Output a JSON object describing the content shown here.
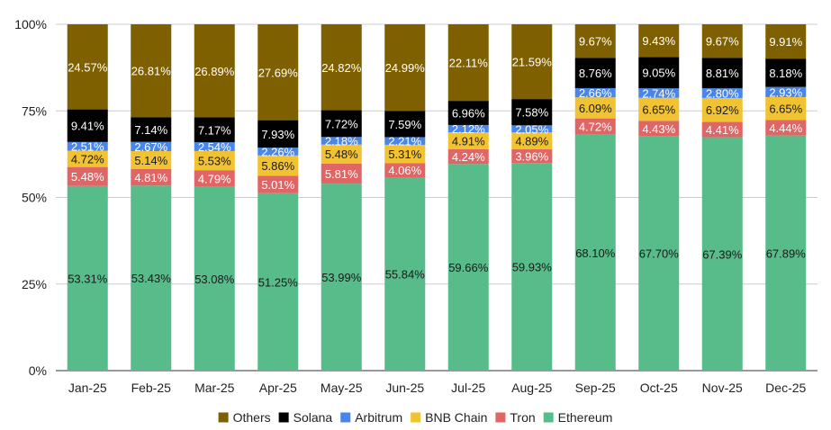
{
  "chart_data": {
    "type": "bar",
    "stacked": true,
    "title": "",
    "xlabel": "",
    "ylabel": "",
    "ylim": [
      0,
      100
    ],
    "y_ticks": [
      "0%",
      "25%",
      "50%",
      "75%",
      "100%"
    ],
    "categories": [
      "Jan-25",
      "Feb-25",
      "Mar-25",
      "Apr-25",
      "May-25",
      "Jun-25",
      "Jul-25",
      "Aug-25",
      "Sep-25",
      "Oct-25",
      "Nov-25",
      "Dec-25"
    ],
    "legend_position": "bottom",
    "series": [
      {
        "name": "Ethereum",
        "color": "#57bb8a",
        "label_color": "#1a1a1a",
        "values": [
          53.31,
          53.43,
          53.08,
          51.25,
          53.99,
          55.84,
          59.66,
          59.93,
          68.1,
          67.7,
          67.39,
          67.89
        ],
        "labels": [
          "53.31%",
          "53.43%",
          "53.08%",
          "51.25%",
          "53.99%",
          "55.84%",
          "59.66%",
          "59.93%",
          "68.10%",
          "67.70%",
          "67.39%",
          "67.89%"
        ]
      },
      {
        "name": "Tron",
        "color": "#e06666",
        "label_color": "#ffffff",
        "values": [
          5.48,
          4.81,
          4.79,
          5.01,
          5.81,
          4.06,
          4.24,
          3.96,
          4.72,
          4.43,
          4.41,
          4.44
        ],
        "labels": [
          "5.48%",
          "4.81%",
          "4.79%",
          "5.01%",
          "5.81%",
          "4.06%",
          "4.24%",
          "3.96%",
          "4.72%",
          "4.43%",
          "4.41%",
          "4.44%"
        ]
      },
      {
        "name": "BNB Chain",
        "color": "#f1c232",
        "label_color": "#1a1a1a",
        "values": [
          4.72,
          5.14,
          5.53,
          5.86,
          5.48,
          5.31,
          4.91,
          4.89,
          6.09,
          6.65,
          6.92,
          6.65
        ],
        "labels": [
          "4.72%",
          "5.14%",
          "5.53%",
          "5.86%",
          "5.48%",
          "5.31%",
          "4.91%",
          "4.89%",
          "6.09%",
          "6.65%",
          "6.92%",
          "6.65%"
        ]
      },
      {
        "name": "Arbitrum",
        "color": "#4a86e8",
        "label_color": "#ffffff",
        "values": [
          2.51,
          2.67,
          2.54,
          2.26,
          2.18,
          2.21,
          2.12,
          2.05,
          2.66,
          2.74,
          2.8,
          2.93
        ],
        "labels": [
          "2.51%",
          "2.67%",
          "2.54%",
          "2.26%",
          "2.18%",
          "2.21%",
          "2.12%",
          "2.05%",
          "2.66%",
          "2.74%",
          "2.80%",
          "2.93%"
        ]
      },
      {
        "name": "Solana",
        "color": "#000000",
        "label_color": "#ffffff",
        "values": [
          9.41,
          7.14,
          7.17,
          7.93,
          7.72,
          7.59,
          6.96,
          7.58,
          8.76,
          9.05,
          8.81,
          8.18
        ],
        "labels": [
          "9.41%",
          "7.14%",
          "7.17%",
          "7.93%",
          "7.72%",
          "7.59%",
          "6.96%",
          "7.58%",
          "8.76%",
          "9.05%",
          "8.81%",
          "8.18%"
        ]
      },
      {
        "name": "Others",
        "color": "#7f6000",
        "label_color": "#ffffff",
        "values": [
          24.57,
          26.81,
          26.89,
          27.69,
          24.82,
          24.99,
          22.11,
          21.59,
          9.67,
          9.43,
          9.67,
          9.91
        ],
        "labels": [
          "24.57%",
          "26.81%",
          "26.89%",
          "27.69%",
          "24.82%",
          "24.99%",
          "22.11%",
          "21.59%",
          "9.67%",
          "9.43%",
          "9.67%",
          "9.91%"
        ]
      }
    ],
    "legend_order": [
      "Others",
      "Solana",
      "Arbitrum",
      "BNB Chain",
      "Tron",
      "Ethereum"
    ],
    "gridline_color": "#cccccc"
  }
}
